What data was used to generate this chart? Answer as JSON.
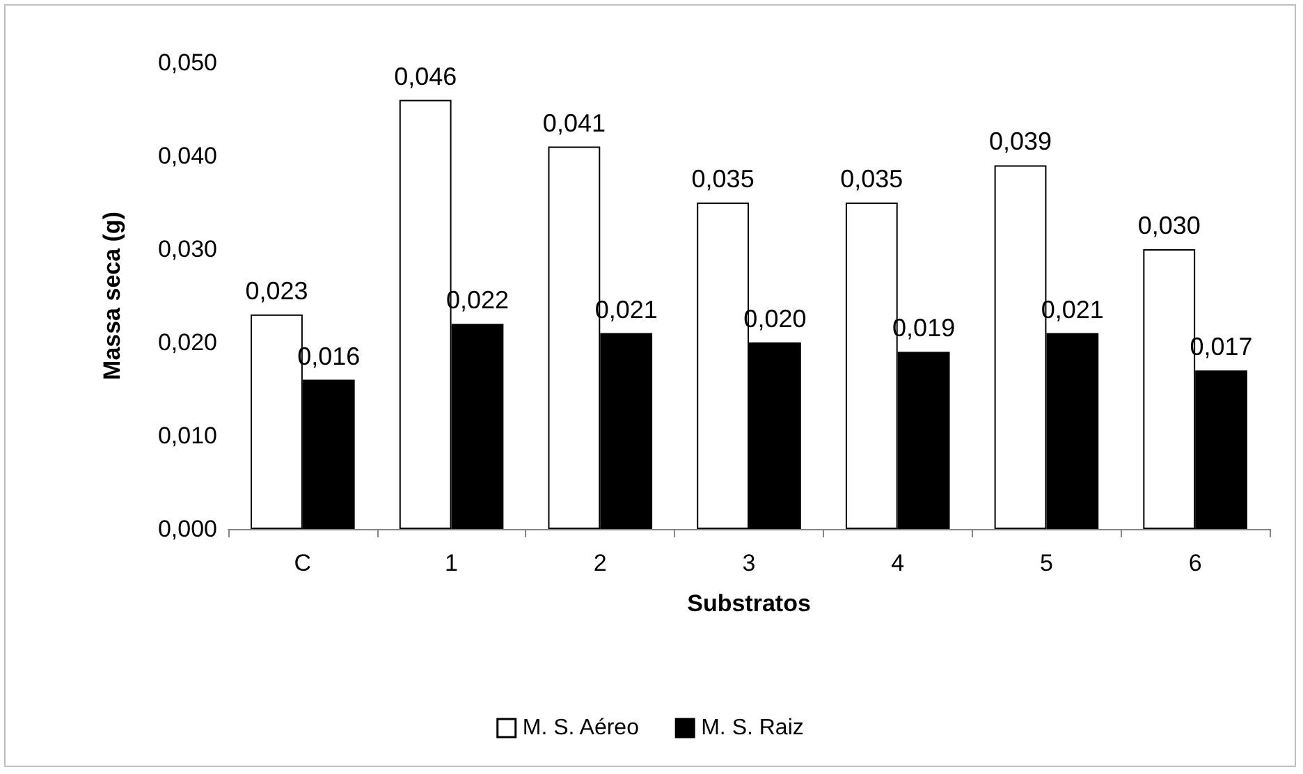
{
  "chart_data": {
    "type": "bar",
    "xlabel": "Substratos",
    "ylabel": "Massa seca (g)",
    "categories": [
      "C",
      "1",
      "2",
      "3",
      "4",
      "5",
      "6"
    ],
    "series": [
      {
        "name": "M. S. Aéreo",
        "color": "#ffffff",
        "values": [
          0.023,
          0.046,
          0.041,
          0.035,
          0.035,
          0.039,
          0.03
        ],
        "value_labels": [
          "0,023",
          "0,046",
          "0,041",
          "0,035",
          "0,035",
          "0,039",
          "0,030"
        ]
      },
      {
        "name": "M. S. Raiz",
        "color": "#000000",
        "values": [
          0.016,
          0.022,
          0.021,
          0.02,
          0.019,
          0.021,
          0.017
        ],
        "value_labels": [
          "0,016",
          "0,022",
          "0,021",
          "0,020",
          "0,019",
          "0,021",
          "0,017"
        ]
      }
    ],
    "ylim": [
      0,
      0.05
    ],
    "yticks": [
      {
        "value": 0,
        "label": "0,000"
      },
      {
        "value": 0.01,
        "label": "0,010"
      },
      {
        "value": 0.02,
        "label": "0,020"
      },
      {
        "value": 0.03,
        "label": "0,030"
      },
      {
        "value": 0.04,
        "label": "0,040"
      },
      {
        "value": 0.05,
        "label": "0,050"
      }
    ],
    "grid": false,
    "legend": "bottom"
  }
}
